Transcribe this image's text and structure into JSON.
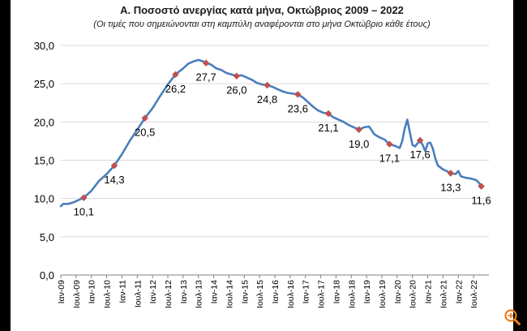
{
  "chart_data": {
    "type": "line",
    "title": "Α. Ποσοστό ανεργίας κατά μήνα, Οκτώβριος 2009 – 2022",
    "subtitle": "(Οι τιμές που σημειώνονται στη καμπύλη αναφέρονται στο μήνα Οκτώβριο κάθε έτους)",
    "xlabel": "",
    "ylabel": "",
    "ylim": [
      0,
      30
    ],
    "yticks": [
      "0,0",
      "5,0",
      "10,0",
      "15,0",
      "20,0",
      "25,0",
      "30,0"
    ],
    "xticks": [
      "Ιαν-09",
      "Ιουλ-09",
      "Ιαν-10",
      "Ιουλ-10",
      "Ιαν-11",
      "Ιουλ-11",
      "Ιαν-12",
      "Ιουλ-12",
      "Ιαν-13",
      "Ιουλ-13",
      "Ιαν-14",
      "Ιουλ-14",
      "Ιαν-15",
      "Ιουλ-15",
      "Ιαν-16",
      "Ιουλ-16",
      "Ιαν-17",
      "Ιουλ-17",
      "Ιαν-18",
      "Ιουλ-18",
      "Ιαν-19",
      "Ιουλ-19",
      "Ιαν-20",
      "Ιουλ-20",
      "Ιαν-21",
      "Ιουλ-21",
      "Ιαν-22",
      "Ιουλ-22"
    ],
    "grid": true,
    "line_color": "#4a7ebb",
    "marker_color": "#c0504d",
    "series": [
      {
        "values": [
          [
            0,
            9.0
          ],
          [
            1,
            9.3
          ],
          [
            3,
            9.3
          ],
          [
            5,
            9.5
          ],
          [
            7,
            9.8
          ],
          [
            9,
            10.1
          ],
          [
            12,
            11.0
          ],
          [
            15,
            12.3
          ],
          [
            18,
            13.2
          ],
          [
            21,
            14.3
          ],
          [
            24,
            15.8
          ],
          [
            27,
            17.5
          ],
          [
            30,
            19.0
          ],
          [
            33,
            20.5
          ],
          [
            36,
            21.8
          ],
          [
            39,
            23.4
          ],
          [
            42,
            24.9
          ],
          [
            45,
            26.2
          ],
          [
            48,
            27.0
          ],
          [
            50,
            27.6
          ],
          [
            52,
            27.9
          ],
          [
            54,
            28.1
          ],
          [
            56,
            27.9
          ],
          [
            57,
            27.7
          ],
          [
            59,
            27.5
          ],
          [
            61,
            27.0
          ],
          [
            63,
            26.8
          ],
          [
            65,
            26.4
          ],
          [
            67,
            26.2
          ],
          [
            69,
            26.0
          ],
          [
            71,
            26.1
          ],
          [
            73,
            25.8
          ],
          [
            75,
            25.5
          ],
          [
            77,
            25.1
          ],
          [
            79,
            24.9
          ],
          [
            81,
            24.8
          ],
          [
            83,
            24.6
          ],
          [
            85,
            24.3
          ],
          [
            87,
            24.0
          ],
          [
            89,
            23.8
          ],
          [
            91,
            23.7
          ],
          [
            93,
            23.6
          ],
          [
            95,
            23.2
          ],
          [
            97,
            22.6
          ],
          [
            99,
            22.0
          ],
          [
            101,
            21.5
          ],
          [
            103,
            21.2
          ],
          [
            105,
            21.1
          ],
          [
            107,
            20.6
          ],
          [
            109,
            20.3
          ],
          [
            111,
            20.0
          ],
          [
            113,
            19.6
          ],
          [
            115,
            19.3
          ],
          [
            117,
            19.0
          ],
          [
            119,
            19.3
          ],
          [
            121,
            19.4
          ],
          [
            123,
            18.4
          ],
          [
            125,
            18.0
          ],
          [
            127,
            17.7
          ],
          [
            129,
            17.1
          ],
          [
            131,
            16.9
          ],
          [
            133,
            16.6
          ],
          [
            134,
            17.5
          ],
          [
            135,
            19.2
          ],
          [
            136,
            20.3
          ],
          [
            137,
            18.6
          ],
          [
            138,
            17.0
          ],
          [
            139,
            16.8
          ],
          [
            140,
            17.2
          ],
          [
            141,
            17.6
          ],
          [
            142,
            17.0
          ],
          [
            143,
            16.2
          ],
          [
            144,
            17.2
          ],
          [
            145,
            17.3
          ],
          [
            146,
            16.5
          ],
          [
            147,
            15.2
          ],
          [
            148,
            14.3
          ],
          [
            150,
            13.8
          ],
          [
            152,
            13.5
          ],
          [
            153,
            13.3
          ],
          [
            155,
            13.2
          ],
          [
            156,
            13.6
          ],
          [
            157,
            12.9
          ],
          [
            159,
            12.7
          ],
          [
            161,
            12.6
          ],
          [
            163,
            12.4
          ],
          [
            164,
            12.1
          ],
          [
            165,
            11.6
          ]
        ]
      }
    ],
    "annotations": [
      {
        "x": 9,
        "y": 10.1,
        "label": "10,1"
      },
      {
        "x": 21,
        "y": 14.3,
        "label": "14,3"
      },
      {
        "x": 33,
        "y": 20.5,
        "label": "20,5"
      },
      {
        "x": 45,
        "y": 26.2,
        "label": "26,2"
      },
      {
        "x": 57,
        "y": 27.7,
        "label": "27,7"
      },
      {
        "x": 69,
        "y": 26.0,
        "label": "26,0"
      },
      {
        "x": 81,
        "y": 24.8,
        "label": "24,8"
      },
      {
        "x": 93,
        "y": 23.6,
        "label": "23,6"
      },
      {
        "x": 105,
        "y": 21.1,
        "label": "21,1"
      },
      {
        "x": 117,
        "y": 19.0,
        "label": "19,0"
      },
      {
        "x": 129,
        "y": 17.1,
        "label": "17,1"
      },
      {
        "x": 141,
        "y": 17.6,
        "label": "17,6"
      },
      {
        "x": 153,
        "y": 13.3,
        "label": "13,3"
      },
      {
        "x": 165,
        "y": 11.6,
        "label": "11,6"
      }
    ]
  },
  "ui": {
    "zoom_icon": "zoom-in-icon",
    "zoom_color": "#f07d1a"
  }
}
